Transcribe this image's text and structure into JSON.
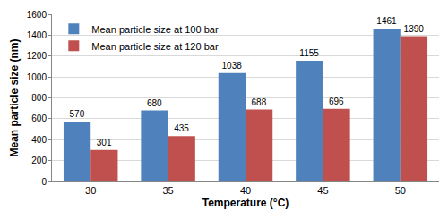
{
  "chart_data": {
    "type": "bar",
    "x_label": "Temperature (°C)",
    "y_label": "Mean particle size (nm)",
    "categories": [
      "30",
      "35",
      "40",
      "45",
      "50"
    ],
    "series": [
      {
        "name": "Mean particle size at 100 bar",
        "color": "#4F81BD",
        "values": [
          570,
          680,
          1038,
          1155,
          1461
        ]
      },
      {
        "name": "Mean particle size at 120 bar",
        "color": "#C0504D",
        "values": [
          301,
          435,
          688,
          696,
          1390
        ]
      }
    ],
    "ylim": [
      0,
      1600
    ],
    "yticks": [
      0,
      200,
      400,
      600,
      800,
      1000,
      1200,
      1400,
      1600
    ],
    "grid": true,
    "legend": "top-left",
    "data_labels": true
  }
}
